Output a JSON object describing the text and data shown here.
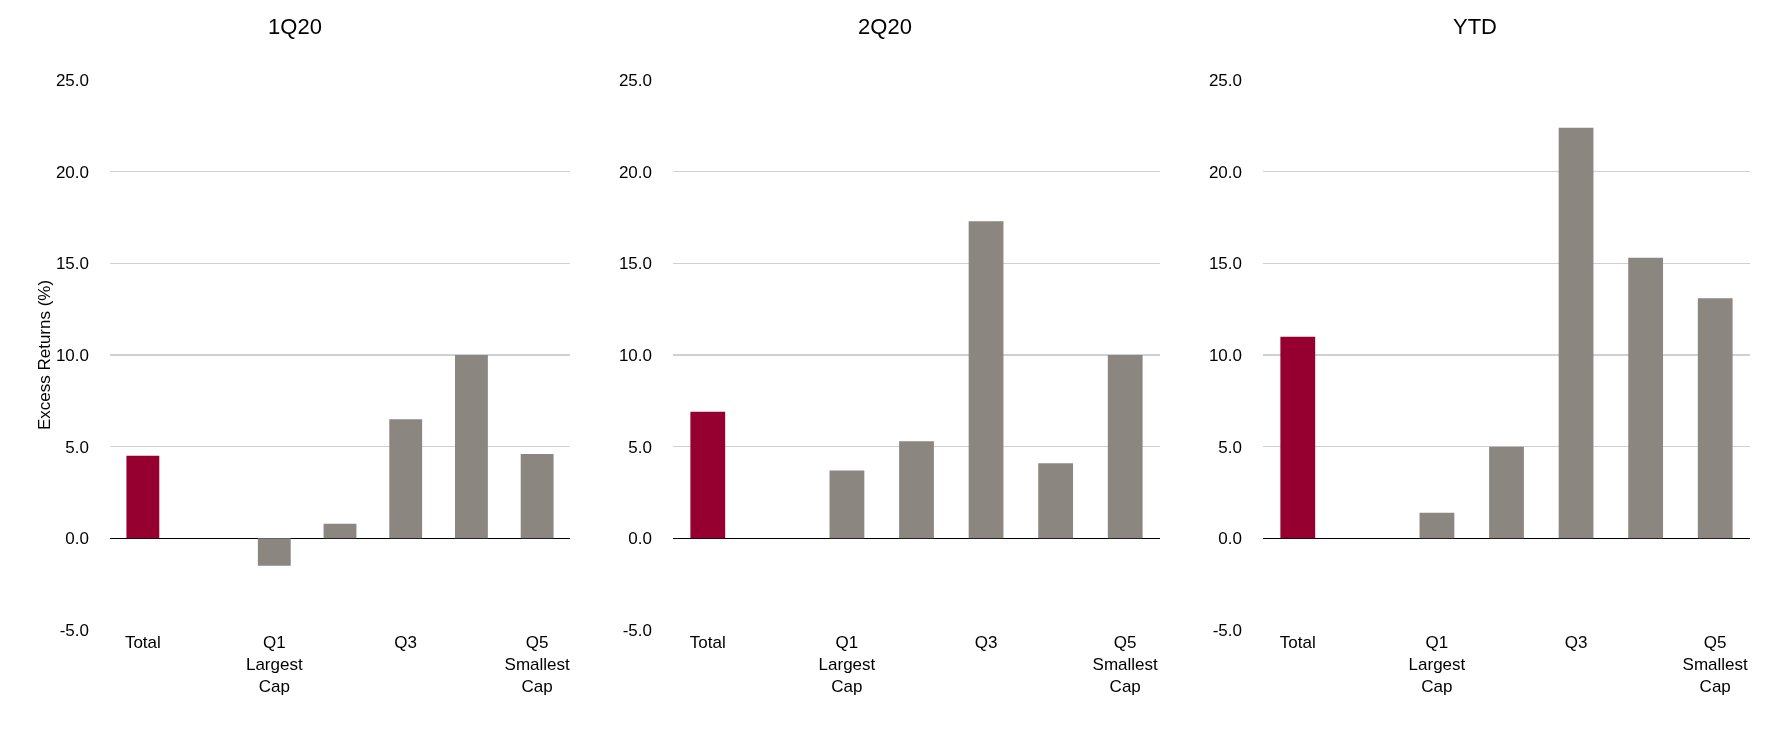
{
  "chart_data": [
    {
      "type": "bar",
      "title": "1Q20",
      "ylabel": "Excess Returns (%)",
      "categories": [
        "Total",
        null,
        "Q1 Largest Cap",
        null,
        "Q3",
        null,
        "Q5 Smallest Cap"
      ],
      "values": [
        4.5,
        null,
        -1.5,
        0.8,
        6.5,
        10.0,
        4.6
      ],
      "colors": [
        "#960030",
        "#8b8680",
        "#8b8680",
        "#8b8680",
        "#8b8680",
        "#8b8680",
        "#8b8680"
      ],
      "ylim": [
        -5,
        25
      ],
      "yticks": [
        {
          "value": -5,
          "label": "-5.0"
        },
        {
          "value": 0,
          "label": "0.0"
        },
        {
          "value": 5,
          "label": "5.0"
        },
        {
          "value": 10,
          "label": "10.0"
        },
        {
          "value": 15,
          "label": "15.0"
        },
        {
          "value": 20,
          "label": "20.0"
        },
        {
          "value": 25,
          "label": "25.0"
        }
      ],
      "grid": "y"
    },
    {
      "type": "bar",
      "title": "2Q20",
      "categories": [
        "Total",
        null,
        "Q1 Largest Cap",
        null,
        "Q3",
        null,
        "Q5 Smallest Cap"
      ],
      "values": [
        6.9,
        null,
        3.7,
        5.3,
        17.3,
        4.1,
        10.0
      ],
      "colors": [
        "#960030",
        "#8b8680",
        "#8b8680",
        "#8b8680",
        "#8b8680",
        "#8b8680",
        "#8b8680"
      ],
      "ylim": [
        -5,
        25
      ],
      "yticks": [
        {
          "value": -5,
          "label": "-5.0"
        },
        {
          "value": 0,
          "label": "0.0"
        },
        {
          "value": 5,
          "label": "5.0"
        },
        {
          "value": 10,
          "label": "10.0"
        },
        {
          "value": 15,
          "label": "15.0"
        },
        {
          "value": 20,
          "label": "20.0"
        },
        {
          "value": 25,
          "label": "25.0"
        }
      ],
      "grid": "y"
    },
    {
      "type": "bar",
      "title": "YTD",
      "categories": [
        "Total",
        null,
        "Q1 Largest Cap",
        null,
        "Q3",
        null,
        "Q5 Smallest Cap"
      ],
      "values": [
        11.0,
        null,
        1.4,
        5.0,
        22.4,
        15.3,
        13.1
      ],
      "colors": [
        "#960030",
        "#8b8680",
        "#8b8680",
        "#8b8680",
        "#8b8680",
        "#8b8680",
        "#8b8680"
      ],
      "ylim": [
        -5,
        25
      ],
      "yticks": [
        {
          "value": -5,
          "label": "-5.0"
        },
        {
          "value": 0,
          "label": "0.0"
        },
        {
          "value": 5,
          "label": "5.0"
        },
        {
          "value": 10,
          "label": "10.0"
        },
        {
          "value": 15,
          "label": "15.0"
        },
        {
          "value": 20,
          "label": "20.0"
        },
        {
          "value": 25,
          "label": "25.0"
        }
      ],
      "grid": "y"
    }
  ]
}
